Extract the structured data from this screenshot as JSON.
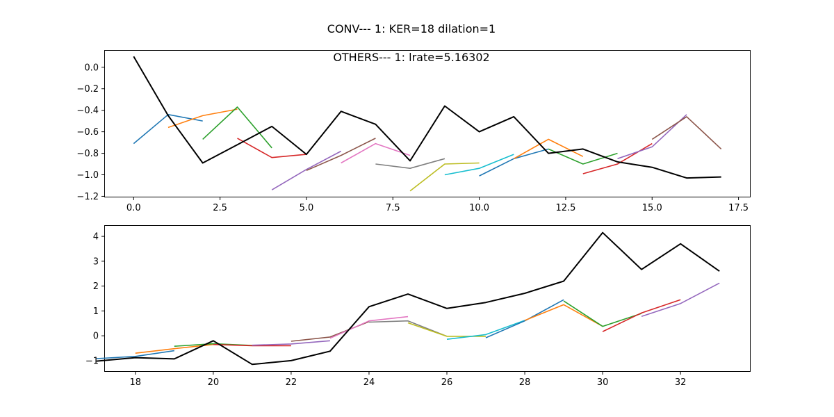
{
  "figure_title": "CONV--- 1: KER=18   dilation=1",
  "colors": {
    "palette": [
      "#1f77b4",
      "#ff7f0e",
      "#2ca02c",
      "#d62728",
      "#9467bd",
      "#8c564b",
      "#e377c2",
      "#7f7f7f",
      "#bcbd22",
      "#17becf"
    ],
    "main": "#000000"
  },
  "chart_data": [
    {
      "type": "line",
      "title": "OTHERS--- 1: lrate=5.16302",
      "xlim": [
        -0.85,
        17.85
      ],
      "ylim": [
        -1.21,
        0.16
      ],
      "xticks": [
        0.0,
        2.5,
        5.0,
        7.5,
        10.0,
        12.5,
        15.0,
        17.5
      ],
      "xtick_labels": [
        "0.0",
        "2.5",
        "5.0",
        "7.5",
        "10.0",
        "12.5",
        "15.0",
        "17.5"
      ],
      "yticks": [
        -1.2,
        -1.0,
        -0.8,
        -0.6,
        -0.4,
        -0.2,
        0.0
      ],
      "ytick_labels": [
        "−1.2",
        "−1.0",
        "−0.8",
        "−0.6",
        "−0.4",
        "−0.2",
        "0.0"
      ],
      "main_series": {
        "x": [
          0,
          1,
          2,
          3,
          4,
          5,
          6,
          7,
          8,
          9,
          10,
          11,
          12,
          13,
          14,
          15,
          16,
          17
        ],
        "y": [
          0.1,
          -0.45,
          -0.89,
          -0.72,
          -0.55,
          -0.81,
          -0.41,
          -0.53,
          -0.87,
          -0.36,
          -0.6,
          -0.46,
          -0.8,
          -0.76,
          -0.88,
          -0.93,
          -1.03,
          -1.02
        ]
      },
      "short_series": [
        {
          "x": [
            0,
            1,
            2
          ],
          "y": [
            -0.71,
            -0.44,
            -0.5
          ]
        },
        {
          "x": [
            1,
            2,
            3
          ],
          "y": [
            -0.56,
            -0.45,
            -0.39
          ]
        },
        {
          "x": [
            2,
            3,
            4
          ],
          "y": [
            -0.67,
            -0.37,
            -0.75
          ]
        },
        {
          "x": [
            3,
            4,
            5
          ],
          "y": [
            -0.66,
            -0.84,
            -0.81
          ]
        },
        {
          "x": [
            4,
            5,
            6
          ],
          "y": [
            -1.14,
            -0.95,
            -0.78
          ]
        },
        {
          "x": [
            5,
            6,
            7
          ],
          "y": [
            -0.96,
            -0.82,
            -0.66
          ]
        },
        {
          "x": [
            6,
            7,
            8
          ],
          "y": [
            -0.89,
            -0.71,
            -0.82
          ]
        },
        {
          "x": [
            7,
            8,
            9
          ],
          "y": [
            -0.9,
            -0.94,
            -0.85
          ]
        },
        {
          "x": [
            8,
            9,
            10
          ],
          "y": [
            -1.15,
            -0.9,
            -0.89
          ]
        },
        {
          "x": [
            9,
            10,
            11
          ],
          "y": [
            -1.0,
            -0.94,
            -0.81
          ]
        },
        {
          "x": [
            10,
            11,
            12
          ],
          "y": [
            -1.01,
            -0.85,
            -0.76
          ]
        },
        {
          "x": [
            11,
            12,
            13
          ],
          "y": [
            -0.85,
            -0.67,
            -0.83
          ]
        },
        {
          "x": [
            12,
            13,
            14
          ],
          "y": [
            -0.76,
            -0.9,
            -0.8
          ]
        },
        {
          "x": [
            13,
            14,
            15
          ],
          "y": [
            -0.99,
            -0.9,
            -0.71
          ]
        },
        {
          "x": [
            14,
            15,
            16
          ],
          "y": [
            -0.85,
            -0.74,
            -0.44
          ]
        },
        {
          "x": [
            15,
            16,
            17
          ],
          "y": [
            -0.67,
            -0.46,
            -0.76
          ]
        }
      ]
    },
    {
      "type": "line",
      "title": "",
      "xlim": [
        17.2,
        33.8
      ],
      "ylim": [
        -1.45,
        4.45
      ],
      "xticks": [
        18,
        20,
        22,
        24,
        26,
        28,
        30,
        32
      ],
      "xtick_labels": [
        "18",
        "20",
        "22",
        "24",
        "26",
        "28",
        "30",
        "32"
      ],
      "yticks": [
        -1,
        0,
        1,
        2,
        3,
        4
      ],
      "ytick_labels": [
        "−1",
        "0",
        "1",
        "2",
        "3",
        "4"
      ],
      "main_series": {
        "x": [
          17,
          18,
          19,
          20,
          21,
          22,
          23,
          24,
          25,
          26,
          27,
          28,
          29,
          30,
          31,
          32,
          33
        ],
        "y": [
          -1.02,
          -0.88,
          -0.93,
          -0.2,
          -1.15,
          -1.0,
          -0.62,
          1.17,
          1.68,
          1.1,
          1.34,
          1.71,
          2.2,
          4.15,
          2.67,
          3.7,
          2.6
        ]
      },
      "short_series": [
        {
          "x": [
            17,
            18,
            19
          ],
          "y": [
            -0.92,
            -0.83,
            -0.6
          ]
        },
        {
          "x": [
            18,
            19,
            20
          ],
          "y": [
            -0.7,
            -0.52,
            -0.35
          ]
        },
        {
          "x": [
            19,
            20,
            21
          ],
          "y": [
            -0.42,
            -0.32,
            -0.39
          ]
        },
        {
          "x": [
            20,
            21,
            22
          ],
          "y": [
            -0.35,
            -0.4,
            -0.4
          ]
        },
        {
          "x": [
            21,
            22,
            23
          ],
          "y": [
            -0.38,
            -0.33,
            -0.2
          ]
        },
        {
          "x": [
            22,
            23,
            24
          ],
          "y": [
            -0.22,
            -0.05,
            0.57
          ]
        },
        {
          "x": [
            23,
            24,
            25
          ],
          "y": [
            -0.1,
            0.6,
            0.77
          ]
        },
        {
          "x": [
            24,
            25,
            26
          ],
          "y": [
            0.55,
            0.6,
            -0.02
          ]
        },
        {
          "x": [
            25,
            26,
            27
          ],
          "y": [
            0.52,
            -0.02,
            -0.02
          ]
        },
        {
          "x": [
            26,
            27,
            28
          ],
          "y": [
            -0.14,
            0.05,
            0.62
          ]
        },
        {
          "x": [
            27,
            28,
            29
          ],
          "y": [
            -0.08,
            0.6,
            1.45
          ]
        },
        {
          "x": [
            28,
            29,
            30
          ],
          "y": [
            0.62,
            1.25,
            0.38
          ]
        },
        {
          "x": [
            29,
            30,
            31
          ],
          "y": [
            1.4,
            0.38,
            0.9
          ]
        },
        {
          "x": [
            30,
            31,
            32
          ],
          "y": [
            0.17,
            0.92,
            1.45
          ]
        },
        {
          "x": [
            31,
            32,
            33
          ],
          "y": [
            0.78,
            1.3,
            2.12
          ]
        }
      ]
    }
  ]
}
